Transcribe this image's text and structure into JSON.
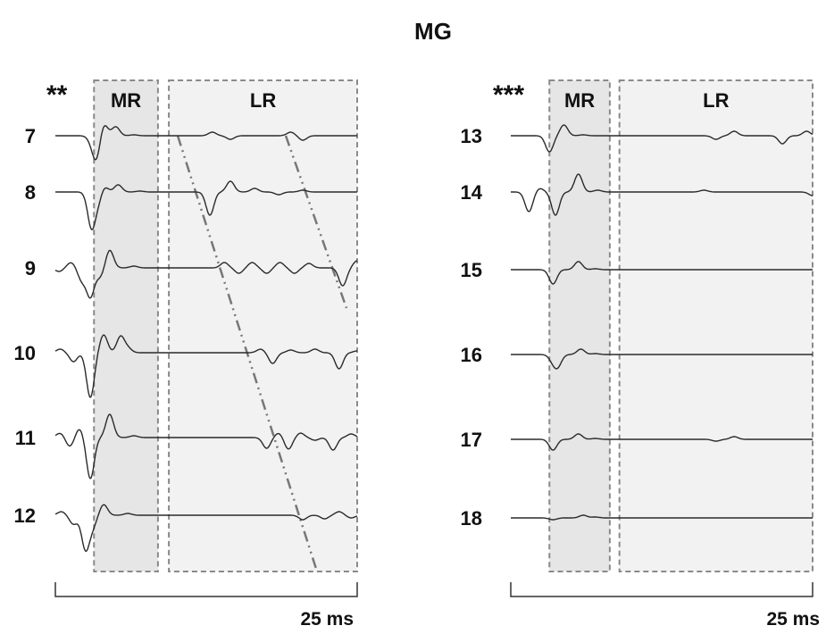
{
  "title": "MG",
  "colors": {
    "trace": "#2a2a2a",
    "mr_fill": "#e6e6e6",
    "lr_fill": "#f2f2f2",
    "box_stroke": "#8a8a8a",
    "latency_line": "#777777"
  },
  "chart_data": [
    {
      "type": "line",
      "panel": "left",
      "significance": "**",
      "windows": [
        {
          "label": "MR",
          "start_ms": 3.2,
          "end_ms": 8.5
        },
        {
          "label": "LR",
          "start_ms": 9.4,
          "end_ms": 25.0
        }
      ],
      "scale_bar": {
        "label": "25 ms",
        "duration_ms": 25
      },
      "series": [
        {
          "name": "7",
          "peaks": [
            [
              3.0,
              -5
            ],
            [
              3.4,
              -26
            ],
            [
              4.0,
              14
            ],
            [
              5.0,
              10
            ],
            [
              6.5,
              1
            ],
            [
              13.0,
              4
            ],
            [
              14.5,
              -4
            ],
            [
              19.5,
              4
            ],
            [
              20.5,
              -5
            ]
          ]
        },
        {
          "name": "8",
          "peaks": [
            [
              3.0,
              -40
            ],
            [
              3.6,
              -12
            ],
            [
              4.0,
              8
            ],
            [
              5.2,
              8
            ],
            [
              7.0,
              1
            ],
            [
              12.8,
              -26
            ],
            [
              14.5,
              12
            ],
            [
              16.5,
              4
            ],
            [
              18.5,
              -3
            ],
            [
              20.5,
              2
            ]
          ]
        },
        {
          "name": "9",
          "peaks": [
            [
              0.3,
              -4
            ],
            [
              1.3,
              6
            ],
            [
              2.2,
              -14
            ],
            [
              2.9,
              -32
            ],
            [
              3.7,
              -10
            ],
            [
              4.5,
              20
            ],
            [
              6.5,
              2
            ],
            [
              14.0,
              6
            ],
            [
              15.2,
              -6
            ],
            [
              16.3,
              6
            ],
            [
              17.5,
              -6
            ],
            [
              18.6,
              6
            ],
            [
              19.8,
              -6
            ],
            [
              21.0,
              5
            ],
            [
              23.8,
              -20
            ],
            [
              25.0,
              8
            ]
          ]
        },
        {
          "name": "10",
          "peaks": [
            [
              0.4,
              4
            ],
            [
              1.5,
              -10
            ],
            [
              2.9,
              -50
            ],
            [
              4.0,
              20
            ],
            [
              5.4,
              18
            ],
            [
              6.0,
              5
            ],
            [
              17.0,
              4
            ],
            [
              18.0,
              -12
            ],
            [
              19.5,
              3
            ],
            [
              21.5,
              4
            ],
            [
              23.5,
              -18
            ],
            [
              25.0,
              2
            ]
          ]
        },
        {
          "name": "11",
          "peaks": [
            [
              0.4,
              5
            ],
            [
              1.2,
              -10
            ],
            [
              2.0,
              10
            ],
            [
              2.9,
              -46
            ],
            [
              4.5,
              26
            ],
            [
              6.5,
              2
            ],
            [
              17.5,
              -12
            ],
            [
              18.5,
              5
            ],
            [
              19.3,
              -13
            ],
            [
              20.3,
              5
            ],
            [
              21.5,
              -3
            ],
            [
              23.0,
              -14
            ],
            [
              24.5,
              4
            ]
          ]
        },
        {
          "name": "12",
          "peaks": [
            [
              0.5,
              4
            ],
            [
              1.5,
              -10
            ],
            [
              2.5,
              -38
            ],
            [
              3.1,
              -12
            ],
            [
              4.0,
              12
            ],
            [
              6.0,
              2
            ],
            [
              20.5,
              -5
            ],
            [
              22.3,
              -4
            ],
            [
              23.5,
              4
            ],
            [
              24.5,
              -3
            ]
          ]
        }
      ]
    },
    {
      "type": "line",
      "panel": "right",
      "significance": "***",
      "windows": [
        {
          "label": "MR",
          "start_ms": 3.2,
          "end_ms": 8.2
        },
        {
          "label": "LR",
          "start_ms": 9.0,
          "end_ms": 25.0
        }
      ],
      "scale_bar": {
        "label": "25 ms",
        "duration_ms": 25
      },
      "series": [
        {
          "name": "13",
          "peaks": [
            [
              3.2,
              -18
            ],
            [
              4.4,
              12
            ],
            [
              6.0,
              1
            ],
            [
              17.0,
              -4
            ],
            [
              18.5,
              5
            ],
            [
              22.5,
              -9
            ],
            [
              24.5,
              5
            ]
          ]
        },
        {
          "name": "14",
          "peaks": [
            [
              1.5,
              -22
            ],
            [
              2.4,
              4
            ],
            [
              3.7,
              -26
            ],
            [
              5.6,
              20
            ],
            [
              7.2,
              2
            ],
            [
              16.0,
              2
            ],
            [
              25.0,
              -4
            ]
          ]
        },
        {
          "name": "15",
          "peaks": [
            [
              3.5,
              -16
            ],
            [
              5.6,
              9
            ],
            [
              7.0,
              1
            ]
          ]
        },
        {
          "name": "16",
          "peaks": [
            [
              3.5,
              -7
            ],
            [
              3.9,
              -12
            ],
            [
              5.8,
              6
            ],
            [
              7.0,
              1
            ]
          ]
        },
        {
          "name": "17",
          "peaks": [
            [
              3.5,
              -12
            ],
            [
              5.6,
              6
            ],
            [
              7.0,
              1
            ],
            [
              17.0,
              -2
            ],
            [
              18.5,
              3
            ]
          ]
        },
        {
          "name": "18",
          "peaks": [
            [
              3.5,
              -2
            ],
            [
              6.0,
              3
            ],
            [
              7.0,
              1
            ]
          ]
        }
      ]
    }
  ]
}
